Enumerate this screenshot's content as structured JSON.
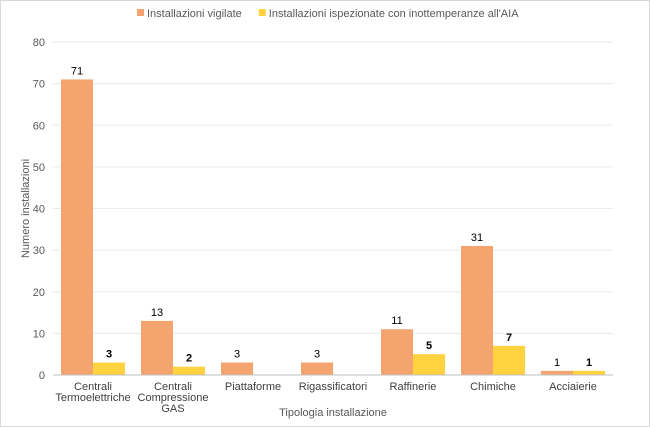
{
  "chart_data": {
    "type": "bar",
    "categories": [
      [
        "Centrali",
        "Termoelettriche"
      ],
      [
        "Centrali",
        "Compressione",
        "GAS"
      ],
      [
        "Piattaforme"
      ],
      [
        "Rigassificatori"
      ],
      [
        "Raffinerie"
      ],
      [
        "Chimiche"
      ],
      [
        "Acciaierie"
      ]
    ],
    "series": [
      {
        "name": "Installazioni vigilate",
        "values": [
          71,
          13,
          3,
          3,
          11,
          31,
          1
        ],
        "color": "#f4a46e",
        "labels_bold": false
      },
      {
        "name": "Installazioni ispezionate con inottemperanze all'AIA",
        "values": [
          3,
          2,
          null,
          null,
          5,
          7,
          1
        ],
        "color": "#ffd33f",
        "labels_bold": true
      }
    ],
    "xlabel": "Tipologia installazione",
    "ylabel": "Numero installazioni",
    "ylim": [
      0,
      80
    ],
    "yticks": [
      0,
      10,
      20,
      30,
      40,
      50,
      60,
      70,
      80
    ],
    "grid": true,
    "legend_position": "top"
  }
}
